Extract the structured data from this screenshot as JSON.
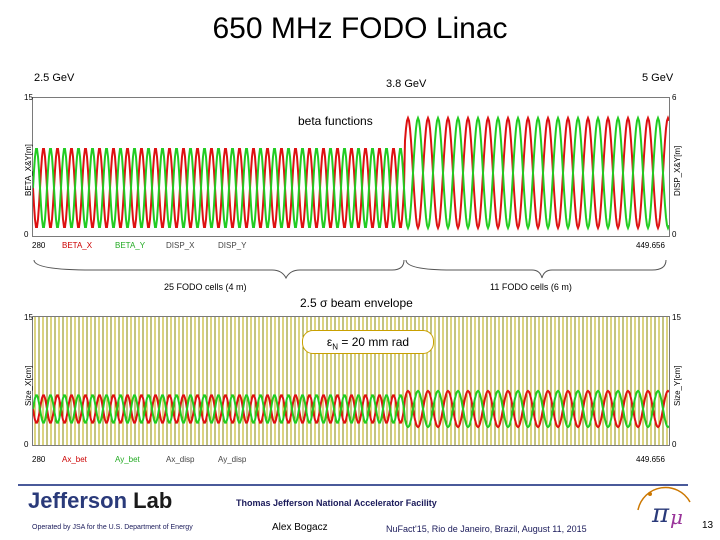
{
  "title": "650 MHz FODO Linac",
  "energies": {
    "left": "2.5 GeV",
    "mid": "3.8 GeV",
    "right": "5 GeV"
  },
  "plot1": {
    "label": "beta functions",
    "ylabel_left": "BETA_X&Y[m]",
    "ylabel_right": "DISP_X&Y[m]",
    "y_left_max": "15",
    "y_right_max": "6",
    "y_min": "0",
    "x_start": "280",
    "x_end": "449.656",
    "legend": [
      "BETA_X",
      "BETA_Y",
      "DISP_X",
      "DISP_Y"
    ]
  },
  "cells": {
    "left": "25 FODO cells (4 m)",
    "right": "11 FODO cells (6 m)"
  },
  "plot2": {
    "label": "2.5 σ  beam envelope",
    "emittance": "ε",
    "emittance_sub": "N",
    "emittance_rest": "= 20 mm rad",
    "ylabel_left": "Size_X[cm]",
    "ylabel_right": "Size_Y[cm]",
    "y_left_max": "15",
    "y_right_max": "15",
    "y_min": "0",
    "x_start": "280",
    "x_end": "449.656",
    "legend": [
      "Ax_bet",
      "Ay_bet",
      "Ax_disp",
      "Ay_disp"
    ]
  },
  "footer": {
    "logo_a": "Jefferson",
    "logo_b": "Lab",
    "facility": "Thomas Jefferson National Accelerator Facility",
    "operated": "Operated by JSA for the U.S. Department of Energy",
    "author": "Alex Bogacz",
    "conference": "NuFact'15, Rio de Janeiro, Brazil, August 11, 2015",
    "page": "13"
  },
  "colors": {
    "red": "#dd1111",
    "green": "#22cc22",
    "yellow": "#b8a800",
    "olive": "#8a8a00",
    "accent": "#2a3a7a"
  }
}
